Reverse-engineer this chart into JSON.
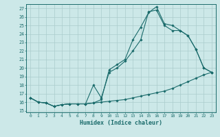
{
  "xlabel": "Humidex (Indice chaleur)",
  "bg_color": "#cce8e8",
  "line_color": "#1a6b6b",
  "grid_color": "#aacccc",
  "xlim": [
    -0.5,
    23.5
  ],
  "ylim": [
    14.8,
    27.5
  ],
  "xticks": [
    0,
    1,
    2,
    3,
    4,
    5,
    6,
    7,
    8,
    9,
    10,
    11,
    12,
    13,
    14,
    15,
    16,
    17,
    18,
    19,
    20,
    21,
    22,
    23
  ],
  "yticks": [
    15,
    16,
    17,
    18,
    19,
    20,
    21,
    22,
    23,
    24,
    25,
    26,
    27
  ],
  "line1_x": [
    0,
    1,
    2,
    3,
    4,
    5,
    6,
    7,
    8,
    9,
    10,
    11,
    12,
    13,
    14,
    15,
    16,
    17,
    18,
    19,
    20,
    21,
    22,
    23
  ],
  "line1_y": [
    16.5,
    16.0,
    15.9,
    15.5,
    15.7,
    15.8,
    15.8,
    15.8,
    15.9,
    16.0,
    16.1,
    16.2,
    16.3,
    16.5,
    16.7,
    16.9,
    17.1,
    17.3,
    17.6,
    18.0,
    18.4,
    18.8,
    19.2,
    19.5
  ],
  "line2_x": [
    0,
    1,
    2,
    3,
    4,
    5,
    6,
    7,
    8,
    9,
    10,
    11,
    12,
    13,
    14,
    15,
    16,
    17,
    18,
    19,
    20,
    21,
    22,
    23
  ],
  "line2_y": [
    16.5,
    16.0,
    15.9,
    15.5,
    15.7,
    15.8,
    15.8,
    15.8,
    15.9,
    16.3,
    19.8,
    20.4,
    21.0,
    23.3,
    24.8,
    26.5,
    27.2,
    25.2,
    25.0,
    24.4,
    23.8,
    22.2,
    20.0,
    19.5
  ],
  "line3_x": [
    0,
    1,
    2,
    3,
    4,
    5,
    6,
    7,
    8,
    9,
    10,
    11,
    12,
    13,
    14,
    15,
    16,
    17,
    18,
    19,
    20,
    21,
    22,
    23
  ],
  "line3_y": [
    16.5,
    16.0,
    15.9,
    15.5,
    15.7,
    15.8,
    15.8,
    15.8,
    18.0,
    16.5,
    19.5,
    20.0,
    20.8,
    22.0,
    23.3,
    26.6,
    26.8,
    25.0,
    24.4,
    24.4,
    23.8,
    22.2,
    20.0,
    19.5
  ]
}
